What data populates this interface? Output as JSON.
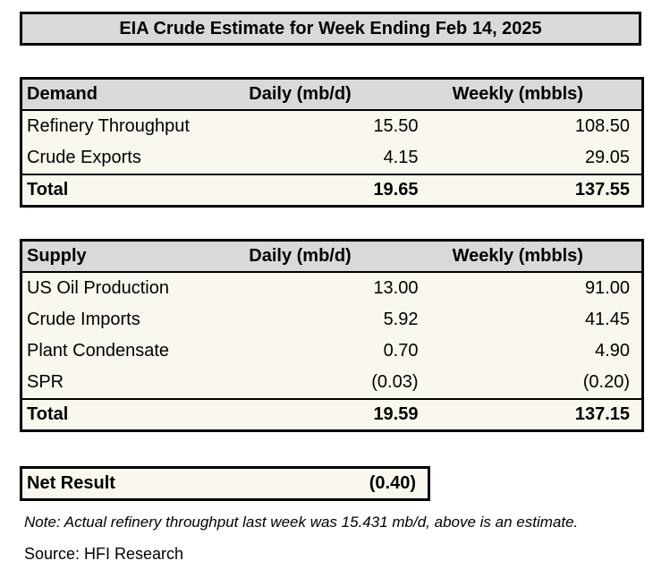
{
  "title": "EIA Crude Estimate for Week Ending Feb 14, 2025",
  "colors": {
    "header_fill": "#D9D9D9",
    "body_fill": "#FAF8EE",
    "border": "#000000",
    "page_background": "#FFFFFF"
  },
  "demand_table": {
    "headers": [
      "Demand",
      "Daily (mb/d)",
      "Weekly (mbbls)"
    ],
    "rows": [
      {
        "label": "Refinery Throughput",
        "daily": "15.50",
        "weekly": "108.50"
      },
      {
        "label": "Crude Exports",
        "daily": "4.15",
        "weekly": "29.05"
      }
    ],
    "total": {
      "label": "Total",
      "daily": "19.65",
      "weekly": "137.55"
    }
  },
  "supply_table": {
    "headers": [
      "Supply",
      "Daily (mb/d)",
      "Weekly (mbbls)"
    ],
    "rows": [
      {
        "label": "US Oil Production",
        "daily": "13.00",
        "weekly": "91.00"
      },
      {
        "label": "Crude Imports",
        "daily": "5.92",
        "weekly": "41.45"
      },
      {
        "label": "Plant Condensate",
        "daily": "0.70",
        "weekly": "4.90"
      },
      {
        "label": "SPR",
        "daily": "(0.03)",
        "weekly": "(0.20)"
      }
    ],
    "total": {
      "label": "Total",
      "daily": "19.59",
      "weekly": "137.15"
    }
  },
  "net_result": {
    "label": "Net Result",
    "value": "(0.40)"
  },
  "note": "Note: Actual refinery throughput last week was 15.431 mb/d, above is an estimate.",
  "source": "Source: HFI Research",
  "chart_data": [
    {
      "type": "table",
      "title": "EIA Crude Estimate for Week Ending Feb 14, 2025",
      "section": "Demand",
      "columns": [
        "Demand",
        "Daily (mb/d)",
        "Weekly (mbbls)"
      ],
      "rows": [
        [
          "Refinery Throughput",
          15.5,
          108.5
        ],
        [
          "Crude Exports",
          4.15,
          29.05
        ],
        [
          "Total",
          19.65,
          137.55
        ]
      ]
    },
    {
      "type": "table",
      "section": "Supply",
      "columns": [
        "Supply",
        "Daily (mb/d)",
        "Weekly (mbbls)"
      ],
      "rows": [
        [
          "US Oil Production",
          13.0,
          91.0
        ],
        [
          "Crude Imports",
          5.92,
          41.45
        ],
        [
          "Plant Condensate",
          0.7,
          4.9
        ],
        [
          "SPR",
          -0.03,
          -0.2
        ],
        [
          "Total",
          19.59,
          137.15
        ]
      ]
    },
    {
      "type": "table",
      "section": "Net Result",
      "columns": [
        "Net Result",
        "Weekly (mbbls)"
      ],
      "rows": [
        [
          "Net Result",
          -0.4
        ]
      ]
    }
  ]
}
